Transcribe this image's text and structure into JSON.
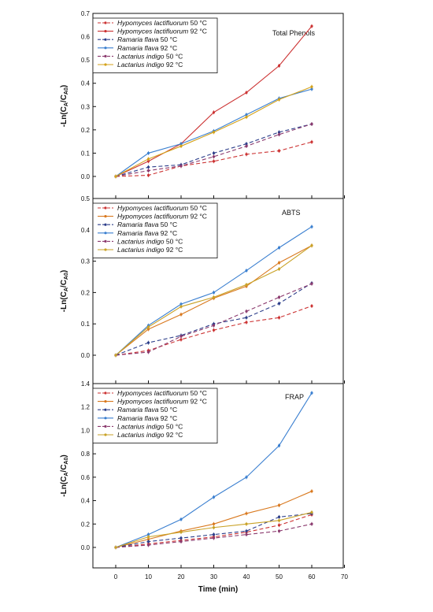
{
  "chart_data": [
    {
      "type": "line",
      "title": "Total Phenols",
      "ylabel": "-Ln(C_A/C_A0)",
      "ylim": [
        0,
        0.7
      ],
      "yticks": [
        "0.0",
        "0.1",
        "0.2",
        "0.3",
        "0.4",
        "0.5",
        "0.6",
        "0.7"
      ],
      "x": [
        0,
        10,
        20,
        30,
        40,
        50,
        60
      ],
      "legend_position": "top-left",
      "series": [
        {
          "species": "Hypomyces lactifluorum",
          "temp": " 50 °C",
          "color": "#cc3333",
          "dashed": true,
          "values": [
            0.0,
            0.005,
            0.045,
            0.065,
            0.095,
            0.11,
            0.148
          ]
        },
        {
          "species": "Hypomyces lactifluorum",
          "temp": " 92 °C",
          "color": "#cc3333",
          "dashed": false,
          "values": [
            0.0,
            0.065,
            0.14,
            0.275,
            0.36,
            0.475,
            0.645
          ]
        },
        {
          "species": "Ramaria flava",
          "temp": " 50 °C",
          "color": "#2c3e8a",
          "dashed": true,
          "values": [
            0.0,
            0.04,
            0.05,
            0.1,
            0.14,
            0.19,
            0.225
          ]
        },
        {
          "species": "Ramaria flava",
          "temp": " 92 °C",
          "color": "#3a7fd0",
          "dashed": false,
          "values": [
            0.0,
            0.1,
            0.14,
            0.195,
            0.265,
            0.335,
            0.375
          ]
        },
        {
          "species": "Lactarius indigo",
          "temp": " 50 °C",
          "color": "#8b3a6e",
          "dashed": true,
          "values": [
            0.0,
            0.025,
            0.045,
            0.085,
            0.13,
            0.18,
            0.225
          ]
        },
        {
          "species": "Lactarius indigo",
          "temp": " 92 °C",
          "color": "#d4a21a",
          "dashed": false,
          "values": [
            0.0,
            0.075,
            0.13,
            0.19,
            0.255,
            0.33,
            0.385
          ]
        }
      ]
    },
    {
      "type": "line",
      "title": "ABTS",
      "ylabel": "-Ln(C_A/C_A0)",
      "ylim": [
        0,
        0.5
      ],
      "yticks": [
        "0.0",
        "0.1",
        "0.2",
        "0.3",
        "0.4",
        "0.5"
      ],
      "x": [
        0,
        10,
        20,
        30,
        40,
        50,
        60
      ],
      "legend_position": "top-left",
      "series": [
        {
          "species": "Hypomyces lactifluorum",
          "temp": " 50 °C",
          "color": "#cc3333",
          "dashed": true,
          "values": [
            0.0,
            0.015,
            0.05,
            0.08,
            0.105,
            0.12,
            0.157
          ]
        },
        {
          "species": "Hypomyces lactifluorum",
          "temp": " 92 °C",
          "color": "#d9791f",
          "dashed": false,
          "values": [
            0.0,
            0.083,
            0.13,
            0.182,
            0.22,
            0.295,
            0.35
          ]
        },
        {
          "species": "Ramaria flava",
          "temp": " 50 °C",
          "color": "#2c3e8a",
          "dashed": true,
          "values": [
            0.0,
            0.04,
            0.063,
            0.1,
            0.12,
            0.165,
            0.23
          ]
        },
        {
          "species": "Ramaria flava",
          "temp": " 92 °C",
          "color": "#3a7fd0",
          "dashed": false,
          "values": [
            0.0,
            0.095,
            0.163,
            0.2,
            0.27,
            0.343,
            0.41
          ]
        },
        {
          "species": "Lactarius indigo",
          "temp": " 50 °C",
          "color": "#8b3a6e",
          "dashed": true,
          "values": [
            0.0,
            0.01,
            0.06,
            0.095,
            0.14,
            0.185,
            0.228
          ]
        },
        {
          "species": "Lactarius indigo",
          "temp": " 92 °C",
          "color": "#c9a227",
          "dashed": false,
          "values": [
            0.0,
            0.09,
            0.155,
            0.185,
            0.225,
            0.275,
            0.35
          ]
        }
      ]
    },
    {
      "type": "line",
      "title": "FRAP",
      "ylabel": "-Ln(C_A/C_A0)",
      "xlabel": "Time (min)",
      "ylim": [
        0,
        1.4
      ],
      "yticks": [
        "0.0",
        "0.2",
        "0.4",
        "0.6",
        "0.8",
        "1.0",
        "1.2",
        "1.4"
      ],
      "xlim": [
        0,
        70
      ],
      "xticks": [
        "0",
        "10",
        "20",
        "30",
        "40",
        "50",
        "60",
        "70"
      ],
      "x": [
        0,
        10,
        20,
        30,
        40,
        50,
        60
      ],
      "legend_position": "top-left",
      "series": [
        {
          "species": "Hypomyces lactifluorum",
          "temp": " 50 °C",
          "color": "#cc3333",
          "dashed": true,
          "values": [
            0.0,
            0.03,
            0.06,
            0.09,
            0.13,
            0.19,
            0.28
          ]
        },
        {
          "species": "Hypomyces lactifluorum",
          "temp": " 92 °C",
          "color": "#d9791f",
          "dashed": false,
          "values": [
            0.0,
            0.07,
            0.14,
            0.2,
            0.29,
            0.36,
            0.48
          ]
        },
        {
          "species": "Ramaria flava",
          "temp": " 50 °C",
          "color": "#2c3e8a",
          "dashed": true,
          "values": [
            0.0,
            0.05,
            0.08,
            0.11,
            0.14,
            0.26,
            0.29
          ]
        },
        {
          "species": "Ramaria flava",
          "temp": " 92 °C",
          "color": "#3a7fd0",
          "dashed": false,
          "values": [
            0.0,
            0.11,
            0.24,
            0.43,
            0.6,
            0.87,
            1.32
          ]
        },
        {
          "species": "Lactarius indigo",
          "temp": " 50 °C",
          "color": "#8b3a6e",
          "dashed": true,
          "values": [
            0.0,
            0.02,
            0.05,
            0.08,
            0.11,
            0.14,
            0.2
          ]
        },
        {
          "species": "Lactarius indigo",
          "temp": " 92 °C",
          "color": "#c9a227",
          "dashed": false,
          "values": [
            0.0,
            0.09,
            0.13,
            0.17,
            0.2,
            0.23,
            0.3
          ]
        }
      ]
    }
  ]
}
